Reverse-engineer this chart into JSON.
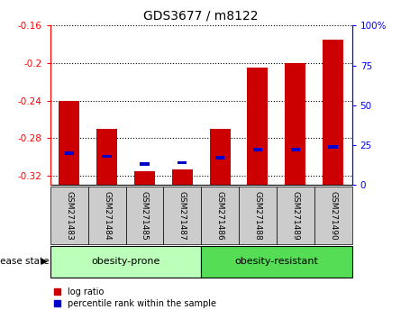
{
  "title": "GDS3677 / m8122",
  "samples": [
    "GSM271483",
    "GSM271484",
    "GSM271485",
    "GSM271487",
    "GSM271486",
    "GSM271488",
    "GSM271489",
    "GSM271490"
  ],
  "log_ratios": [
    -0.24,
    -0.27,
    -0.315,
    -0.313,
    -0.27,
    -0.205,
    -0.2,
    -0.175
  ],
  "percentiles": [
    20,
    18,
    13,
    14,
    17,
    22,
    22,
    24
  ],
  "ylim_left": [
    -0.33,
    -0.16
  ],
  "ylim_right": [
    0,
    100
  ],
  "yticks_left": [
    -0.32,
    -0.28,
    -0.24,
    -0.2,
    -0.16
  ],
  "yticks_right": [
    0,
    25,
    50,
    75,
    100
  ],
  "groups": [
    {
      "label": "obesity-prone",
      "indices": [
        0,
        1,
        2,
        3
      ],
      "color": "#bbffbb"
    },
    {
      "label": "obesity-resistant",
      "indices": [
        4,
        5,
        6,
        7
      ],
      "color": "#55dd55"
    }
  ],
  "bar_color": "#cc0000",
  "pct_color": "#0000cc",
  "tick_area_color": "#cccccc",
  "disease_state_label": "disease state",
  "legend_red": "log ratio",
  "legend_blue": "percentile rank within the sample",
  "bar_width": 0.55
}
